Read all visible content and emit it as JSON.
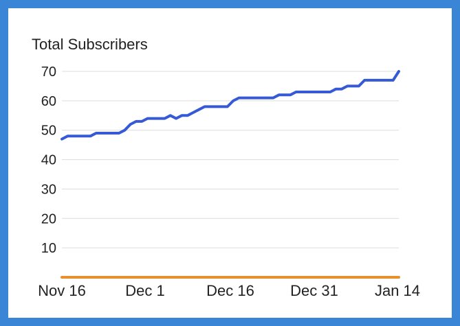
{
  "chart_data": {
    "type": "line",
    "title": "Total Subscribers",
    "xlabel": "",
    "ylabel": "",
    "ylim": [
      0,
      70
    ],
    "grid": true,
    "y_ticks": [
      10,
      20,
      30,
      40,
      50,
      60,
      70
    ],
    "x_ticks": [
      "Nov 16",
      "Dec 1",
      "Dec 16",
      "Dec 31",
      "Jan 14"
    ],
    "x_range": [
      "2023-11-16",
      "2024-01-14"
    ],
    "series": [
      {
        "color": "#3659d6",
        "x": [
          "2023-11-16",
          "2023-11-17",
          "2023-11-18",
          "2023-11-19",
          "2023-11-20",
          "2023-11-21",
          "2023-11-22",
          "2023-11-23",
          "2023-11-24",
          "2023-11-25",
          "2023-11-26",
          "2023-11-27",
          "2023-11-28",
          "2023-11-29",
          "2023-11-30",
          "2023-12-01",
          "2023-12-02",
          "2023-12-03",
          "2023-12-04",
          "2023-12-05",
          "2023-12-06",
          "2023-12-07",
          "2023-12-08",
          "2023-12-09",
          "2023-12-10",
          "2023-12-11",
          "2023-12-12",
          "2023-12-13",
          "2023-12-14",
          "2023-12-15",
          "2023-12-16",
          "2023-12-17",
          "2023-12-18",
          "2023-12-19",
          "2023-12-20",
          "2023-12-21",
          "2023-12-22",
          "2023-12-23",
          "2023-12-24",
          "2023-12-25",
          "2023-12-26",
          "2023-12-27",
          "2023-12-28",
          "2023-12-29",
          "2023-12-30",
          "2023-12-31",
          "2024-01-01",
          "2024-01-02",
          "2024-01-03",
          "2024-01-04",
          "2024-01-05",
          "2024-01-06",
          "2024-01-07",
          "2024-01-08",
          "2024-01-09",
          "2024-01-10",
          "2024-01-11",
          "2024-01-12",
          "2024-01-13",
          "2024-01-14"
        ],
        "values": [
          47,
          48,
          48,
          48,
          48,
          48,
          49,
          49,
          49,
          49,
          49,
          50,
          52,
          53,
          53,
          54,
          54,
          54,
          54,
          55,
          54,
          55,
          55,
          56,
          57,
          58,
          58,
          58,
          58,
          58,
          60,
          61,
          61,
          61,
          61,
          61,
          61,
          61,
          62,
          62,
          62,
          63,
          63,
          63,
          63,
          63,
          63,
          63,
          64,
          64,
          65,
          65,
          65,
          67,
          67,
          67,
          67,
          67,
          67,
          70
        ]
      },
      {
        "color": "#e8902e",
        "x": [
          "2023-11-16",
          "2024-01-14"
        ],
        "values": [
          0,
          0
        ]
      }
    ]
  }
}
